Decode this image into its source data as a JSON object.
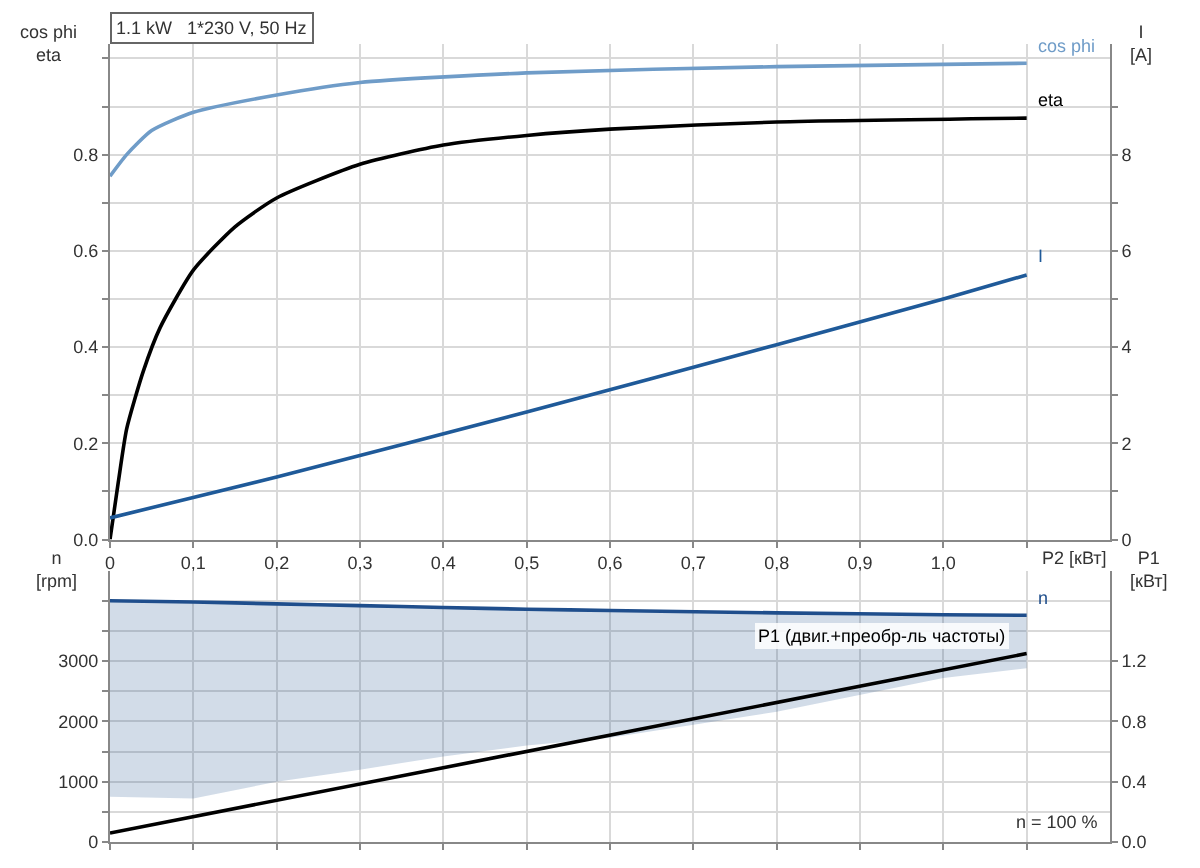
{
  "chart_data": [
    {
      "type": "line",
      "title": "1.1 kW   1*230 V, 50 Hz",
      "xlabel": "P2 [кВт]",
      "ylabel": "cos phi\neta",
      "y2label": "I\n[A]",
      "xlim": [
        0,
        1.2
      ],
      "xticks": [
        {
          "value": 0,
          "label": "0"
        },
        {
          "value": 0.1,
          "label": "0,1"
        },
        {
          "value": 0.2,
          "label": "0,2"
        },
        {
          "value": 0.3,
          "label": "0,3"
        },
        {
          "value": 0.4,
          "label": "0,4"
        },
        {
          "value": 0.5,
          "label": "0,5"
        },
        {
          "value": 0.6,
          "label": "0,6"
        },
        {
          "value": 0.7,
          "label": "0,7"
        },
        {
          "value": 0.8,
          "label": "0,8"
        },
        {
          "value": 0.9,
          "label": "0,9"
        },
        {
          "value": 1.0,
          "label": "1,0"
        },
        {
          "value": 1.1,
          "label": null
        }
      ],
      "ylim": [
        0,
        1.03
      ],
      "yticks": [
        {
          "value": 0,
          "label": "0.0"
        },
        {
          "value": 0.1,
          "label": null
        },
        {
          "value": 0.2,
          "label": "0.2"
        },
        {
          "value": 0.3,
          "label": null
        },
        {
          "value": 0.4,
          "label": "0.4"
        },
        {
          "value": 0.5,
          "label": null
        },
        {
          "value": 0.6,
          "label": "0.6"
        },
        {
          "value": 0.7,
          "label": null
        },
        {
          "value": 0.8,
          "label": "0.8"
        },
        {
          "value": 0.9,
          "label": null
        },
        {
          "value": 1.0,
          "label": null
        }
      ],
      "y2lim": [
        0,
        10.3
      ],
      "y2ticks": [
        0,
        {
          "value": 1,
          "label": null
        },
        2,
        {
          "value": 3,
          "label": null
        },
        4,
        {
          "value": 5,
          "label": null
        },
        6,
        {
          "value": 7,
          "label": null
        },
        8,
        {
          "value": 9,
          "label": null
        }
      ],
      "grid": true,
      "series": [
        {
          "name": "cos phi",
          "color": "#6f9cc8",
          "x": [
            0,
            0.02,
            0.05,
            0.1,
            0.2,
            0.3,
            0.5,
            0.8,
            1.1
          ],
          "values": [
            0.755,
            0.8,
            0.85,
            0.888,
            0.924,
            0.95,
            0.97,
            0.983,
            0.99
          ]
        },
        {
          "name": "eta",
          "color": "#000000",
          "x": [
            0,
            0.01,
            0.02,
            0.04,
            0.06,
            0.1,
            0.15,
            0.2,
            0.3,
            0.4,
            0.5,
            0.6,
            0.8,
            1.1
          ],
          "values": [
            0,
            0.12,
            0.23,
            0.35,
            0.44,
            0.56,
            0.65,
            0.71,
            0.78,
            0.82,
            0.84,
            0.853,
            0.868,
            0.876
          ]
        },
        {
          "name": "I",
          "color": "#1f5a99",
          "axis": "y2",
          "x": [
            0,
            0.2,
            0.5,
            0.8,
            1.0,
            1.1
          ],
          "values": [
            0.45,
            1.3,
            2.65,
            4.05,
            5.0,
            5.5
          ]
        }
      ]
    },
    {
      "type": "line",
      "ylabel": "n\n[rpm]",
      "y2label": "P1\n[кВт]",
      "annotations": [
        "n = 100 %"
      ],
      "xlim": [
        0,
        1.2
      ],
      "xticks": [
        {
          "value": 0,
          "label": null
        },
        {
          "value": 0.1,
          "label": null
        },
        {
          "value": 0.2,
          "label": null
        },
        {
          "value": 0.3,
          "label": null
        },
        {
          "value": 0.4,
          "label": null
        },
        {
          "value": 0.5,
          "label": null
        },
        {
          "value": 0.6,
          "label": null
        },
        {
          "value": 0.7,
          "label": null
        },
        {
          "value": 0.8,
          "label": null
        },
        {
          "value": 0.9,
          "label": null
        },
        {
          "value": 1.0,
          "label": null
        },
        {
          "value": 1.1,
          "label": null
        }
      ],
      "tick_labels": "y",
      "ylim": [
        0,
        4500
      ],
      "yticks": [
        0,
        {
          "value": 500,
          "label": null
        },
        1000,
        {
          "value": 1500,
          "label": null
        },
        2000,
        {
          "value": 2500,
          "label": null
        },
        3000,
        {
          "value": 3500,
          "label": null
        },
        {
          "value": 4000,
          "label": null
        }
      ],
      "y2lim": [
        0,
        1.8
      ],
      "y2ticks": [
        {
          "value": 0,
          "label": "0.0"
        },
        {
          "value": 0.4,
          "label": "0.4"
        },
        {
          "value": 0.8,
          "label": "0.8"
        },
        {
          "value": 1.2,
          "label": "1.2"
        }
      ],
      "grid": true,
      "series": [
        {
          "name": "n",
          "color": "#1f4e8c",
          "x": [
            0,
            0.1,
            0.2,
            0.3,
            0.4,
            0.5,
            0.6,
            0.8,
            1.0,
            1.1
          ],
          "values": [
            4000,
            3980,
            3950,
            3920,
            3890,
            3860,
            3840,
            3800,
            3770,
            3760
          ],
          "lower": [
            750,
            720,
            1000,
            1200,
            1420,
            1600,
            1730,
            2160,
            2720,
            2880
          ],
          "upper": [
            4000,
            3980,
            3950,
            3920,
            3890,
            3860,
            3840,
            3800,
            3770,
            3760
          ]
        },
        {
          "name": "P1 (двиг.+преобр-ль частоты)",
          "color": "#000000",
          "axis": "y2",
          "x": [
            0,
            1.1
          ],
          "values": [
            0.06,
            1.25
          ]
        }
      ]
    }
  ]
}
